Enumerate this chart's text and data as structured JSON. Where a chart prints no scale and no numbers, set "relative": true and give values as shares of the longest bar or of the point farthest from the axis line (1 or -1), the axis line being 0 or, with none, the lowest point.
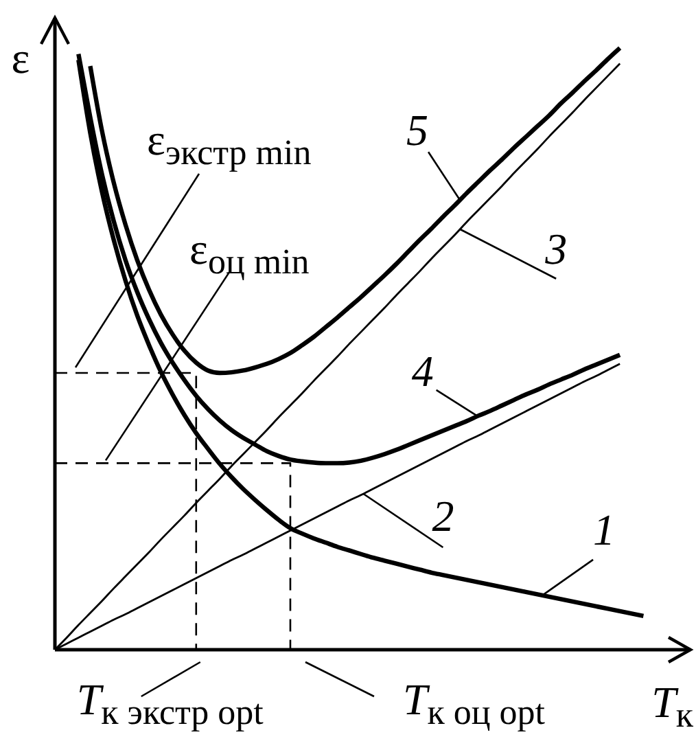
{
  "chart_data": {
    "type": "line",
    "relative": true,
    "xlabel": "T$_{к}$",
    "ylabel": "ε",
    "categories": [
      null,
      null,
      null,
      null,
      null,
      null,
      null,
      null,
      null,
      null,
      null,
      null,
      null,
      null,
      null,
      null,
      null,
      null,
      null,
      null,
      null,
      null,
      null,
      null,
      null,
      null,
      null,
      null,
      null,
      null,
      null,
      null,
      null,
      null,
      null,
      null,
      null,
      null,
      null,
      null,
      null,
      null,
      null,
      null,
      null,
      null,
      null,
      null,
      null,
      null,
      null,
      null,
      null,
      null,
      null
    ],
    "series": [
      {
        "name": "1",
        "color": "#000000",
        "values": [
          null,
          null,
          0.98,
          0.859,
          0.761,
          0.681,
          0.613,
          0.555,
          0.506,
          0.462,
          0.424,
          0.39,
          0.36,
          0.334,
          0.309,
          0.287,
          0.267,
          0.249,
          0.232,
          0.216,
          0.202,
          0.193,
          0.185,
          0.178,
          0.171,
          0.165,
          0.159,
          0.153,
          0.148,
          0.143,
          0.138,
          0.133,
          0.128,
          0.124,
          0.12,
          0.116,
          0.112,
          0.108,
          0.104,
          0.1,
          0.096,
          0.092,
          0.088,
          0.084,
          0.08,
          0.076,
          0.072,
          0.068,
          0.064,
          0.06,
          0.056,
          null,
          null,
          null,
          null
        ]
      },
      {
        "name": "2",
        "color": "#000000",
        "values": [
          0,
          0.01,
          0.02,
          0.03,
          0.04,
          0.05,
          0.059,
          0.069,
          0.079,
          0.089,
          0.099,
          0.109,
          0.119,
          0.129,
          0.139,
          0.149,
          0.158,
          0.168,
          0.178,
          0.188,
          0.198,
          0.208,
          0.218,
          0.228,
          0.238,
          0.248,
          0.257,
          0.267,
          0.277,
          0.287,
          0.297,
          0.307,
          0.317,
          0.327,
          0.337,
          0.347,
          0.356,
          0.366,
          0.376,
          0.386,
          0.396,
          0.406,
          0.416,
          0.426,
          0.436,
          0.446,
          0.455,
          0.465,
          0.475,
          null,
          null,
          null,
          null,
          null,
          null
        ]
      },
      {
        "name": "3",
        "color": "#000000",
        "values": [
          0,
          0.02,
          0.041,
          0.061,
          0.081,
          0.102,
          0.122,
          0.142,
          0.162,
          0.183,
          0.203,
          0.223,
          0.244,
          0.264,
          0.284,
          0.305,
          0.325,
          0.345,
          0.365,
          0.386,
          0.406,
          0.426,
          0.447,
          0.467,
          0.487,
          0.508,
          0.528,
          0.548,
          0.568,
          0.589,
          0.609,
          0.629,
          0.65,
          0.67,
          0.69,
          0.711,
          0.731,
          0.751,
          0.771,
          0.792,
          0.812,
          0.832,
          0.853,
          0.873,
          0.893,
          0.914,
          0.934,
          0.954,
          0.974,
          null,
          null,
          null,
          null,
          null,
          null
        ]
      },
      {
        "name": "4",
        "color": "#000000",
        "values": [
          null,
          null,
          0.99,
          0.885,
          0.79,
          0.712,
          0.647,
          0.594,
          0.549,
          0.51,
          0.477,
          0.448,
          0.422,
          0.4,
          0.381,
          0.365,
          0.352,
          0.341,
          0.33,
          0.322,
          0.316,
          0.313,
          0.311,
          0.31,
          0.31,
          0.311,
          0.314,
          0.319,
          0.325,
          0.332,
          0.34,
          0.348,
          0.356,
          0.364,
          0.372,
          0.38,
          0.389,
          0.397,
          0.406,
          0.415,
          0.424,
          0.432,
          0.441,
          0.449,
          0.457,
          0.466,
          0.474,
          0.482,
          0.49,
          null,
          null,
          null,
          null,
          null,
          null
        ]
      },
      {
        "name": "5",
        "color": "#000000",
        "values": [
          null,
          null,
          null,
          0.97,
          0.862,
          0.776,
          0.706,
          0.647,
          0.598,
          0.557,
          0.524,
          0.497,
          0.477,
          0.464,
          0.46,
          0.461,
          0.464,
          0.469,
          0.475,
          0.483,
          0.493,
          0.506,
          0.52,
          0.536,
          0.552,
          0.569,
          0.586,
          0.604,
          0.622,
          0.641,
          0.661,
          0.681,
          0.7,
          0.72,
          0.739,
          0.759,
          0.778,
          0.797,
          0.815,
          0.834,
          0.852,
          0.87,
          0.888,
          0.908,
          0.926,
          0.945,
          0.963,
          0.982,
          1.0,
          null,
          null,
          null,
          null,
          null,
          null
        ]
      },
      {
        "type": "step",
        "line_style": "dashed",
        "color": "#000000",
        "values": [
          0.46,
          0.46,
          0.46,
          0.46,
          0.46,
          0.46,
          0.46,
          0.46,
          0.46,
          0.46,
          0.46,
          0.46,
          0,
          null,
          null,
          null,
          null,
          null,
          null,
          null,
          null,
          null,
          null,
          null,
          null,
          null,
          null,
          null,
          null,
          null,
          null,
          null,
          null,
          null,
          null,
          null,
          null,
          null,
          null,
          null,
          null,
          null,
          null,
          null,
          null,
          null,
          null,
          null,
          null,
          null,
          null,
          null,
          null,
          null,
          null
        ]
      },
      {
        "type": "step",
        "line_style": "dashed",
        "color": "#000000",
        "values": [
          0.31,
          0.31,
          0.31,
          0.31,
          0.31,
          0.31,
          0.31,
          0.31,
          0.31,
          0.31,
          0.31,
          0.31,
          0.31,
          0.31,
          0.31,
          0.31,
          0.31,
          0.31,
          0.31,
          0.31,
          0,
          null,
          null,
          null,
          null,
          null,
          null,
          null,
          null,
          null,
          null,
          null,
          null,
          null,
          null,
          null,
          null,
          null,
          null,
          null,
          null,
          null,
          null,
          null,
          null,
          null,
          null,
          null,
          null,
          null,
          null,
          null,
          null,
          null,
          null
        ]
      }
    ],
    "annotations": [
      "ε$_{экстр min}$",
      "ε$_{оц min}$",
      "T$_{к экстр opt}$",
      "T$_{к оц opt}$"
    ]
  }
}
